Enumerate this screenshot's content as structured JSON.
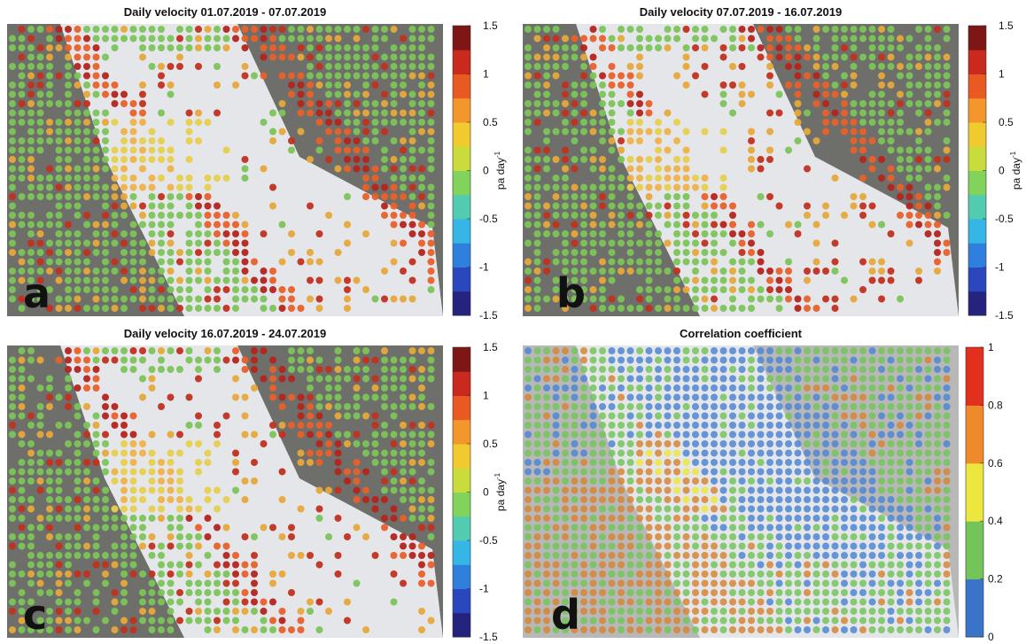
{
  "panels": [
    {
      "title": "Daily velocity 01.07.2019 - 07.07.2019",
      "letter": "a",
      "colorbar": {
        "lim": [
          -1.5,
          1.5
        ],
        "ticks": [
          -1.5,
          -1,
          -0.5,
          0,
          0.5,
          1,
          1.5
        ],
        "unit": "pa day",
        "unit_superscript": "-1",
        "colors": [
          "#24237e",
          "#2b47bd",
          "#2f7fdc",
          "#35b6e6",
          "#52cbb0",
          "#82d35c",
          "#c9dc3c",
          "#f0cb30",
          "#f3962c",
          "#e95a22",
          "#c92a1d",
          "#7e1616"
        ]
      }
    },
    {
      "title": "Daily velocity 07.07.2019 - 16.07.2019",
      "letter": "b",
      "colorbar": {
        "lim": [
          -1.5,
          1.5
        ],
        "ticks": [
          -1.5,
          -1,
          -0.5,
          0,
          0.5,
          1,
          1.5
        ],
        "unit": "pa day",
        "unit_superscript": "-1",
        "colors": [
          "#24237e",
          "#2b47bd",
          "#2f7fdc",
          "#35b6e6",
          "#52cbb0",
          "#82d35c",
          "#c9dc3c",
          "#f0cb30",
          "#f3962c",
          "#e95a22",
          "#c92a1d",
          "#7e1616"
        ]
      }
    },
    {
      "title": "Daily velocity 16.07.2019 - 24.07.2019",
      "letter": "c",
      "colorbar": {
        "lim": [
          -1.5,
          1.5
        ],
        "ticks": [
          -1.5,
          -1,
          -0.5,
          0,
          0.5,
          1,
          1.5
        ],
        "unit": "pa day",
        "unit_superscript": "-1",
        "colors": [
          "#24237e",
          "#2b47bd",
          "#2f7fdc",
          "#35b6e6",
          "#52cbb0",
          "#82d35c",
          "#c9dc3c",
          "#f0cb30",
          "#f3962c",
          "#e95a22",
          "#c92a1d",
          "#7e1616"
        ]
      }
    },
    {
      "title": "Correlation coefficient",
      "letter": "d",
      "colorbar": {
        "lim": [
          0,
          1
        ],
        "ticks": [
          0,
          0.2,
          0.4,
          0.6,
          0.8,
          1
        ],
        "colors": [
          "#3a74c8",
          "#74c45a",
          "#ece63e",
          "#ef8a2a",
          "#e2301f"
        ]
      }
    }
  ]
}
